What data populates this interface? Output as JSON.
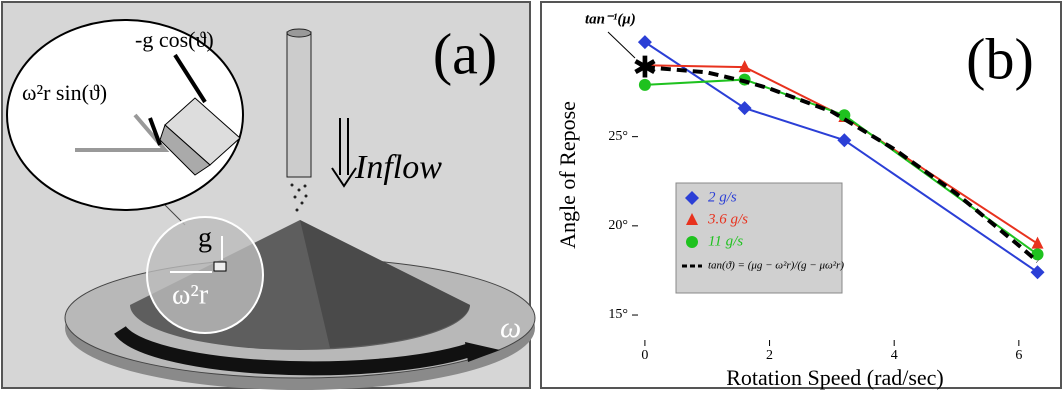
{
  "panel_a": {
    "label": "(a)",
    "force_normal": "-g cos(ϑ)",
    "force_tangential": "ω²r sin(ϑ)",
    "inflow": "Inflow",
    "gravity": "g",
    "centrifugal": "ω²r",
    "omega": "ω"
  },
  "chart_data": {
    "type": "line",
    "panel_label": "(b)",
    "x_label": "Rotation Speed (rad/sec)",
    "y_label": "Angle of Repose",
    "xlim": [
      -0.56,
      6.5
    ],
    "ylim": [
      13.6,
      32.1
    ],
    "xticks": [
      0,
      2,
      4,
      6
    ],
    "yticks": [
      {
        "value": 15,
        "label": "15°"
      },
      {
        "value": 20,
        "label": "20°"
      },
      {
        "value": 25,
        "label": "25°"
      }
    ],
    "annotation": {
      "text": "tan⁻¹(μ)",
      "x": 0,
      "y": 28.7
    },
    "series": [
      {
        "name": "2 g/s",
        "color": "#2b3fd6",
        "marker": "diamond",
        "x": [
          0,
          1.6,
          3.2,
          6.3
        ],
        "values": [
          30.3,
          26.6,
          24.8,
          17.4
        ]
      },
      {
        "name": "3.6 g/s",
        "color": "#e8321e",
        "marker": "triangle",
        "x": [
          0,
          1.6,
          3.2,
          6.3
        ],
        "values": [
          29.0,
          28.9,
          26.1,
          19.0
        ]
      },
      {
        "name": "11 g/s",
        "color": "#1fc21f",
        "marker": "circle",
        "x": [
          0,
          1.6,
          3.2,
          6.3
        ],
        "values": [
          27.9,
          28.2,
          26.2,
          18.4
        ]
      },
      {
        "name": "tan(ϑ) = (μg − ω²r)/(g − μω²r)",
        "color": "#000000",
        "marker": "dashed",
        "x": [
          0,
          1,
          1.6,
          2,
          3,
          4,
          5,
          6,
          6.3
        ],
        "values": [
          28.9,
          28.6,
          28.1,
          27.7,
          26.4,
          24.3,
          21.8,
          18.9,
          18.0
        ]
      }
    ]
  }
}
